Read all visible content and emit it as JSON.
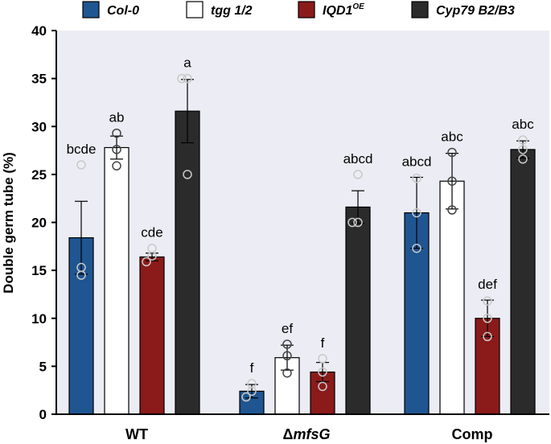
{
  "chart_data": {
    "type": "bar",
    "title": "",
    "xlabel": "",
    "ylabel": "Double germ tube (%)",
    "ylim": [
      0,
      40
    ],
    "yticks": [
      "0",
      "5",
      "10",
      "15",
      "20",
      "25",
      "30",
      "35",
      "40"
    ],
    "categories": [
      {
        "main": "WT",
        "prefix": "",
        "italic": ""
      },
      {
        "main": "",
        "prefix": "Δ",
        "italic": "mfsG"
      },
      {
        "main": "Comp",
        "prefix": "",
        "italic": ""
      }
    ],
    "legend": [
      {
        "name": "Col-0",
        "sup": "",
        "color": "#1f5591"
      },
      {
        "name": "tgg 1/2",
        "sup": "",
        "color": "#ffffff"
      },
      {
        "name": "IQD1",
        "sup": "OE",
        "color": "#8b1a1a"
      },
      {
        "name": "Cyp79 B2/B3",
        "sup": "",
        "color": "#2b2b2b"
      }
    ],
    "series": [
      {
        "name": "Col-0",
        "color": "#1f5591",
        "values": [
          18.4,
          2.4,
          21.0
        ],
        "errors": [
          3.8,
          0.7,
          3.7
        ],
        "points": [
          [
            26.0,
            15.3,
            14.5
          ],
          [
            3.2,
            2.4,
            1.8
          ],
          [
            24.6,
            21.0,
            17.3
          ]
        ],
        "letters": [
          "bcde",
          "f",
          "abcd"
        ]
      },
      {
        "name": "tgg 1/2",
        "color": "#ffffff",
        "values": [
          27.8,
          5.9,
          24.3
        ],
        "errors": [
          1.2,
          1.3,
          2.9
        ],
        "points": [
          [
            29.3,
            27.6,
            25.9
          ],
          [
            7.3,
            6.1,
            4.3
          ],
          [
            27.3,
            24.3,
            21.3
          ]
        ],
        "letters": [
          "ab",
          "ef",
          "abc"
        ]
      },
      {
        "name": "IQD1OE",
        "color": "#8b1a1a",
        "values": [
          16.4,
          4.4,
          10.0
        ],
        "errors": [
          0.4,
          1.0,
          1.9
        ],
        "points": [
          [
            17.3,
            16.5,
            15.9
          ],
          [
            5.8,
            4.4,
            2.9
          ],
          [
            11.8,
            10.0,
            8.1
          ]
        ],
        "letters": [
          "cde",
          "f",
          "def"
        ]
      },
      {
        "name": "Cyp79 B2/B3",
        "color": "#2b2b2b",
        "values": [
          31.6,
          21.6,
          27.6
        ],
        "errors": [
          3.3,
          1.7,
          0.9
        ],
        "points": [
          [
            35.0,
            35.0,
            25.0
          ],
          [
            25.0,
            20.0,
            20.0
          ],
          [
            28.6,
            27.6,
            26.6
          ]
        ],
        "letters": [
          "a",
          "abcd",
          "abc"
        ]
      }
    ]
  }
}
